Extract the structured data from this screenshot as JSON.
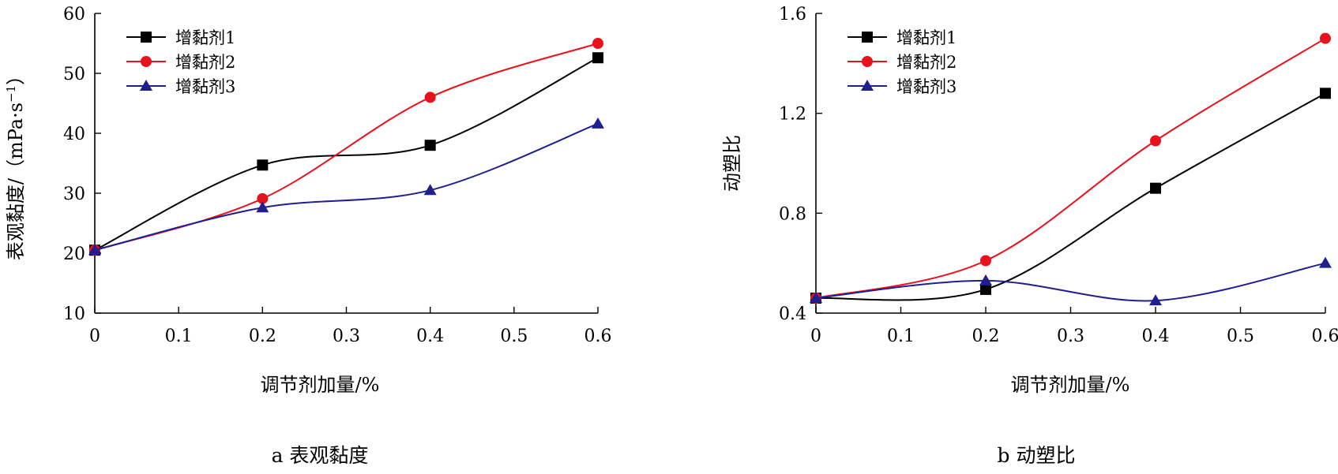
{
  "chart_data": [
    {
      "id": "a",
      "type": "line",
      "caption": "a  表观黏度",
      "xlabel": "调节剂加量/%",
      "ylabel": "表观黏度/（mPa·s",
      "ylabel_sup": "−1",
      "ylabel_close": "）",
      "xlim": [
        0,
        0.6
      ],
      "ylim": [
        10,
        60
      ],
      "xticks": [
        "0",
        "0.1",
        "0.2",
        "0.3",
        "0.4",
        "0.5",
        "0.6"
      ],
      "xtick_values": [
        0,
        0.1,
        0.2,
        0.3,
        0.4,
        0.5,
        0.6
      ],
      "yticks": [
        "10",
        "20",
        "30",
        "40",
        "50",
        "60"
      ],
      "ytick_values": [
        10,
        20,
        30,
        40,
        50,
        60
      ],
      "x": [
        0,
        0.2,
        0.4,
        0.6
      ],
      "legend_position": "top-left",
      "series": [
        {
          "name": "增黏剂1",
          "color": "#000000",
          "marker": "square",
          "values": [
            20.5,
            34.7,
            38.0,
            52.6
          ]
        },
        {
          "name": "增黏剂2",
          "color": "#e8111c",
          "marker": "circle",
          "values": [
            20.5,
            29.1,
            46.0,
            55.0
          ]
        },
        {
          "name": "增黏剂3",
          "color": "#1f1f8f",
          "marker": "triangle",
          "values": [
            20.5,
            27.6,
            30.5,
            41.6
          ]
        }
      ]
    },
    {
      "id": "b",
      "type": "line",
      "caption": "b  动塑比",
      "xlabel": "调节剂加量/%",
      "ylabel": "动塑比",
      "ylabel_sup": "",
      "ylabel_close": "",
      "xlim": [
        0,
        0.6
      ],
      "ylim": [
        0.4,
        1.6
      ],
      "xticks": [
        "0",
        "0.1",
        "0.2",
        "0.3",
        "0.4",
        "0.5",
        "0.6"
      ],
      "xtick_values": [
        0,
        0.1,
        0.2,
        0.3,
        0.4,
        0.5,
        0.6
      ],
      "yticks": [
        "0.4",
        "0.8",
        "1.2",
        "1.6"
      ],
      "ytick_values": [
        0.4,
        0.8,
        1.2,
        1.6
      ],
      "x": [
        0,
        0.2,
        0.4,
        0.6
      ],
      "legend_position": "top-left",
      "series": [
        {
          "name": "增黏剂1",
          "color": "#000000",
          "marker": "square",
          "values": [
            0.46,
            0.495,
            0.9,
            1.28
          ]
        },
        {
          "name": "增黏剂2",
          "color": "#e8111c",
          "marker": "circle",
          "values": [
            0.46,
            0.61,
            1.09,
            1.5
          ]
        },
        {
          "name": "增黏剂3",
          "color": "#1f1f8f",
          "marker": "triangle",
          "values": [
            0.46,
            0.53,
            0.45,
            0.6
          ]
        }
      ]
    }
  ]
}
